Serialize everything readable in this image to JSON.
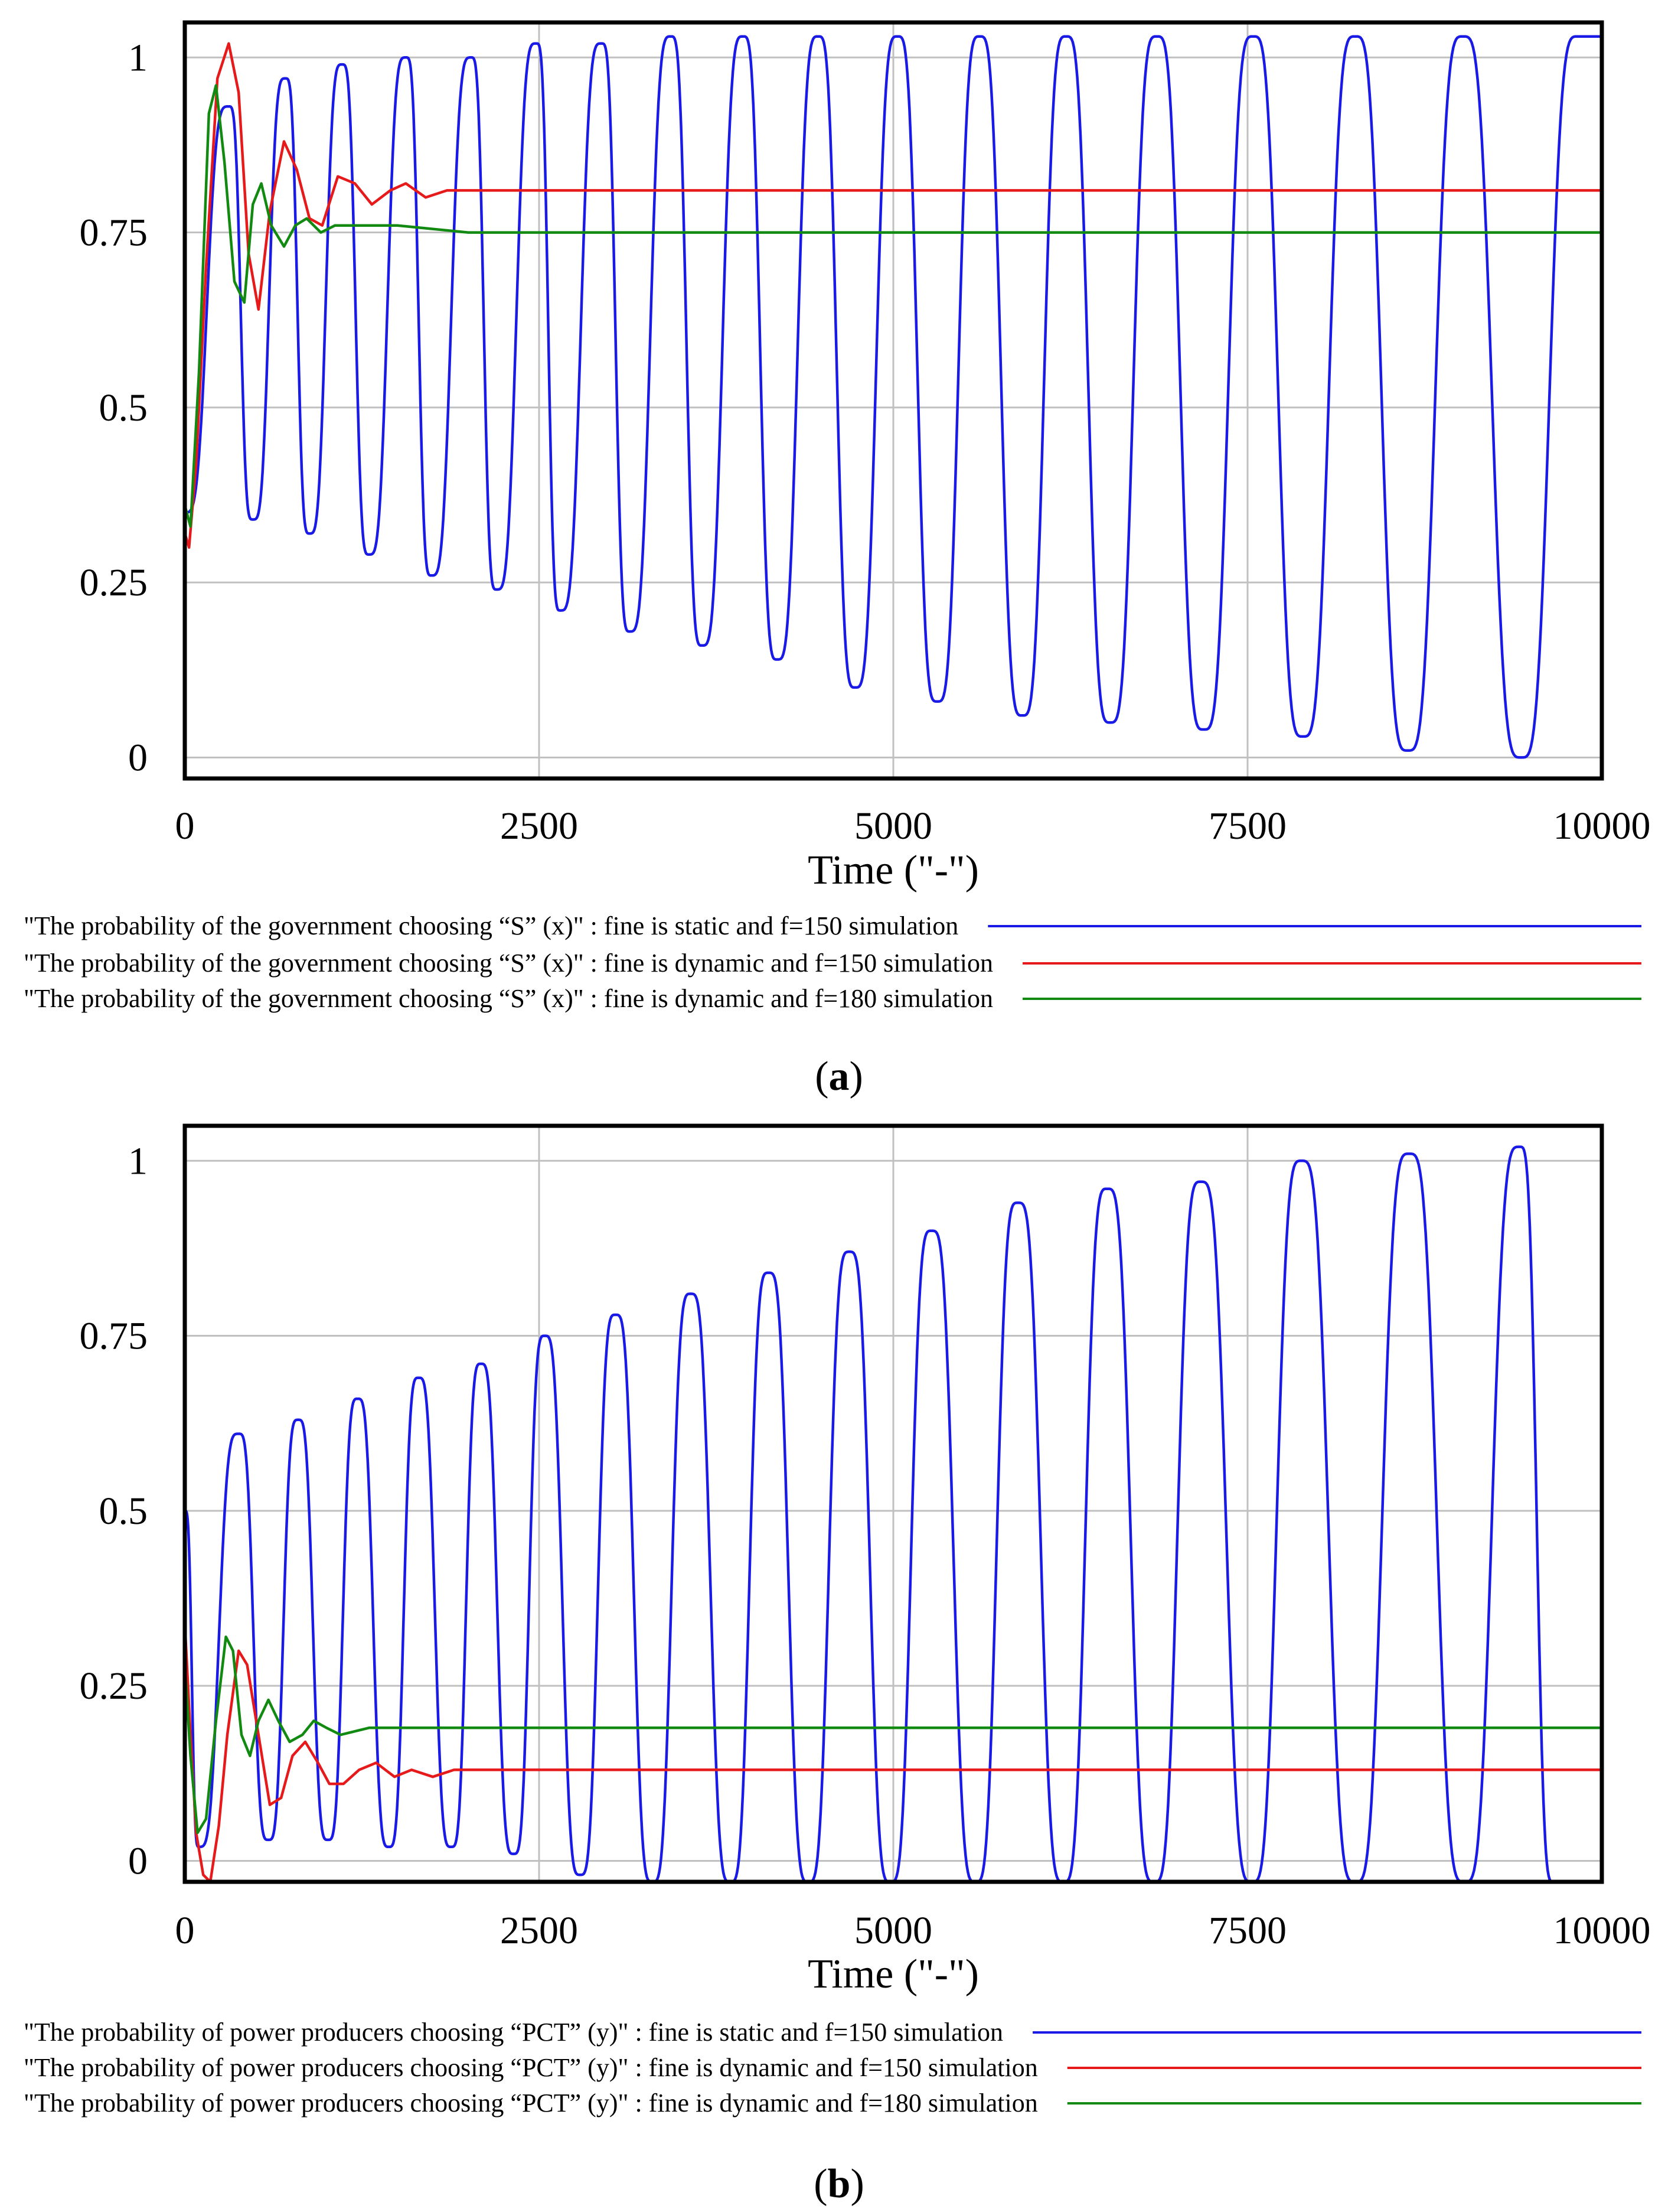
{
  "chart_data": [
    {
      "type": "line",
      "panel": "a",
      "caption": "a",
      "xlabel": "Time (\"-\")",
      "ylabel": "",
      "xlim": [
        0,
        10000
      ],
      "ylim": [
        -0.03,
        1.05
      ],
      "x_ticks": [
        0,
        2500,
        5000,
        7500,
        10000
      ],
      "x_tick_labels": [
        "0",
        "2500",
        "5000",
        "7500",
        "10000"
      ],
      "y_ticks": [
        0,
        0.25,
        0.5,
        0.75,
        1
      ],
      "y_tick_labels": [
        "0",
        "0.25",
        "0.5",
        "0.75",
        "1"
      ],
      "grid": true,
      "legend_position": "bottom",
      "series": [
        {
          "name": "\"The probability of the government choosing “S” (x)\" : fine is static and f=150 simulation",
          "color": "#1a1ae6",
          "kind": "oscillation",
          "start": 0.35,
          "peaks": [
            [
              310,
              0.93
            ],
            [
              710,
              0.97
            ],
            [
              1110,
              0.99
            ],
            [
              1560,
              1.0
            ],
            [
              2020,
              1.0
            ],
            [
              2480,
              1.02
            ],
            [
              2940,
              1.02
            ],
            [
              3430,
              1.03
            ],
            [
              3940,
              1.03
            ],
            [
              4470,
              1.03
            ],
            [
              5030,
              1.03
            ],
            [
              5610,
              1.03
            ],
            [
              6220,
              1.03
            ],
            [
              6860,
              1.03
            ],
            [
              7540,
              1.03
            ],
            [
              8260,
              1.03
            ],
            [
              9020,
              1.03
            ],
            [
              9830,
              1.03
            ]
          ],
          "troughs": [
            [
              480,
              0.34
            ],
            [
              880,
              0.32
            ],
            [
              1300,
              0.29
            ],
            [
              1740,
              0.26
            ],
            [
              2200,
              0.24
            ],
            [
              2650,
              0.21
            ],
            [
              3140,
              0.18
            ],
            [
              3650,
              0.16
            ],
            [
              4180,
              0.14
            ],
            [
              4730,
              0.1
            ],
            [
              5310,
              0.08
            ],
            [
              5910,
              0.06
            ],
            [
              6530,
              0.05
            ],
            [
              7190,
              0.04
            ],
            [
              7890,
              0.03
            ],
            [
              8630,
              0.01
            ],
            [
              9430,
              0.0
            ]
          ]
        },
        {
          "name": "\"The probability of the government choosing “S” (x)\" : fine is dynamic and f=150 simulation",
          "color": "#e61a1a",
          "kind": "damped",
          "points": [
            [
              0,
              0.32
            ],
            [
              30,
              0.3
            ],
            [
              80,
              0.42
            ],
            [
              150,
              0.7
            ],
            [
              230,
              0.97
            ],
            [
              310,
              1.02
            ],
            [
              380,
              0.95
            ],
            [
              450,
              0.72
            ],
            [
              520,
              0.64
            ],
            [
              600,
              0.78
            ],
            [
              700,
              0.88
            ],
            [
              790,
              0.84
            ],
            [
              880,
              0.77
            ],
            [
              970,
              0.76
            ],
            [
              1080,
              0.83
            ],
            [
              1200,
              0.82
            ],
            [
              1320,
              0.79
            ],
            [
              1450,
              0.81
            ],
            [
              1560,
              0.82
            ],
            [
              1700,
              0.8
            ],
            [
              1850,
              0.81
            ],
            [
              2000,
              0.81
            ],
            [
              10000,
              0.81
            ]
          ]
        },
        {
          "name": "\"The probability of the government choosing “S” (x)\" : fine is dynamic and f=180 simulation",
          "color": "#128a12",
          "kind": "damped",
          "points": [
            [
              0,
              0.36
            ],
            [
              40,
              0.33
            ],
            [
              100,
              0.55
            ],
            [
              170,
              0.92
            ],
            [
              220,
              0.96
            ],
            [
              280,
              0.85
            ],
            [
              350,
              0.68
            ],
            [
              420,
              0.65
            ],
            [
              480,
              0.79
            ],
            [
              540,
              0.82
            ],
            [
              610,
              0.76
            ],
            [
              700,
              0.73
            ],
            [
              780,
              0.76
            ],
            [
              860,
              0.77
            ],
            [
              960,
              0.75
            ],
            [
              1060,
              0.76
            ],
            [
              1200,
              0.76
            ],
            [
              1500,
              0.76
            ],
            [
              2000,
              0.75
            ],
            [
              10000,
              0.75
            ]
          ]
        }
      ]
    },
    {
      "type": "line",
      "panel": "b",
      "caption": "b",
      "xlabel": "Time (\"-\")",
      "ylabel": "",
      "xlim": [
        0,
        10000
      ],
      "ylim": [
        -0.03,
        1.05
      ],
      "x_ticks": [
        0,
        2500,
        5000,
        7500,
        10000
      ],
      "x_tick_labels": [
        "0",
        "2500",
        "5000",
        "7500",
        "10000"
      ],
      "y_ticks": [
        0,
        0.25,
        0.5,
        0.75,
        1
      ],
      "y_tick_labels": [
        "0",
        "0.25",
        "0.5",
        "0.75",
        "1"
      ],
      "grid": true,
      "legend_position": "bottom",
      "series": [
        {
          "name": "\"The probability of power producers choosing “PCT” (y)\" : fine is static and f=150 simulation",
          "color": "#1a1ae6",
          "kind": "oscillation",
          "start": 0.5,
          "peaks": [
            [
              380,
              0.61
            ],
            [
              800,
              0.63
            ],
            [
              1220,
              0.66
            ],
            [
              1650,
              0.69
            ],
            [
              2090,
              0.71
            ],
            [
              2540,
              0.75
            ],
            [
              3040,
              0.78
            ],
            [
              3570,
              0.81
            ],
            [
              4120,
              0.84
            ],
            [
              4690,
              0.87
            ],
            [
              5270,
              0.9
            ],
            [
              5880,
              0.94
            ],
            [
              6510,
              0.96
            ],
            [
              7170,
              0.97
            ],
            [
              7880,
              1.0
            ],
            [
              8640,
              1.01
            ],
            [
              9420,
              1.02
            ]
          ],
          "troughs": [
            [
              100,
              0.02
            ],
            [
              590,
              0.03
            ],
            [
              1010,
              0.03
            ],
            [
              1440,
              0.02
            ],
            [
              1880,
              0.02
            ],
            [
              2320,
              0.01
            ],
            [
              2790,
              -0.02
            ],
            [
              3300,
              -0.03
            ],
            [
              3850,
              -0.03
            ],
            [
              4400,
              -0.03
            ],
            [
              4980,
              -0.03
            ],
            [
              5580,
              -0.03
            ],
            [
              6200,
              -0.03
            ],
            [
              6840,
              -0.03
            ],
            [
              7530,
              -0.03
            ],
            [
              8260,
              -0.03
            ],
            [
              9030,
              -0.03
            ],
            [
              9660,
              -0.03
            ],
            [
              10000,
              -0.03
            ]
          ]
        },
        {
          "name": "\"The probability of power producers choosing “PCT” (y)\" : fine is dynamic and f=150 simulation",
          "color": "#e61a1a",
          "kind": "damped",
          "points": [
            [
              0,
              0.34
            ],
            [
              40,
              0.18
            ],
            [
              80,
              0.04
            ],
            [
              130,
              -0.02
            ],
            [
              180,
              -0.03
            ],
            [
              240,
              0.05
            ],
            [
              300,
              0.18
            ],
            [
              380,
              0.3
            ],
            [
              440,
              0.28
            ],
            [
              520,
              0.18
            ],
            [
              600,
              0.08
            ],
            [
              680,
              0.09
            ],
            [
              760,
              0.15
            ],
            [
              850,
              0.17
            ],
            [
              940,
              0.14
            ],
            [
              1020,
              0.11
            ],
            [
              1120,
              0.11
            ],
            [
              1230,
              0.13
            ],
            [
              1350,
              0.14
            ],
            [
              1480,
              0.12
            ],
            [
              1600,
              0.13
            ],
            [
              1750,
              0.12
            ],
            [
              1900,
              0.13
            ],
            [
              2100,
              0.13
            ],
            [
              10000,
              0.13
            ]
          ]
        },
        {
          "name": "\"The probability of power producers choosing “PCT” (y)\" : fine is dynamic and f=180 simulation",
          "color": "#128a12",
          "kind": "damped",
          "points": [
            [
              0,
              0.28
            ],
            [
              40,
              0.15
            ],
            [
              90,
              0.04
            ],
            [
              150,
              0.06
            ],
            [
              220,
              0.2
            ],
            [
              290,
              0.32
            ],
            [
              340,
              0.3
            ],
            [
              400,
              0.18
            ],
            [
              460,
              0.15
            ],
            [
              520,
              0.2
            ],
            [
              590,
              0.23
            ],
            [
              660,
              0.2
            ],
            [
              740,
              0.17
            ],
            [
              830,
              0.18
            ],
            [
              910,
              0.2
            ],
            [
              1000,
              0.19
            ],
            [
              1100,
              0.18
            ],
            [
              1300,
              0.19
            ],
            [
              1600,
              0.19
            ],
            [
              2000,
              0.19
            ],
            [
              10000,
              0.19
            ]
          ]
        }
      ]
    }
  ]
}
